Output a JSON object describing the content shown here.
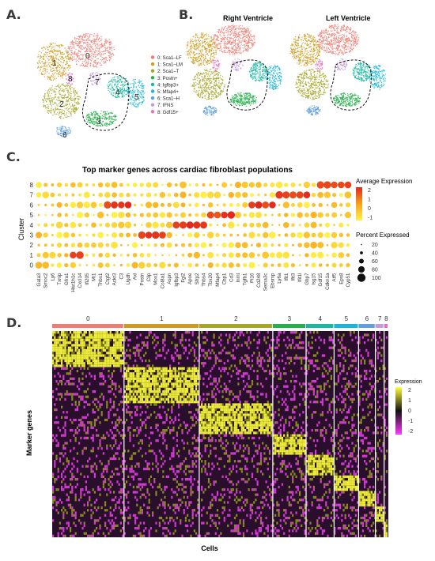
{
  "panel_labels": {
    "a": "A.",
    "b": "B.",
    "c": "C.",
    "d": "D."
  },
  "panel_a": {
    "cluster_labels": [
      "0",
      "1",
      "8",
      "7",
      "2",
      "4",
      "5",
      "3",
      "6"
    ],
    "legend": [
      {
        "label": "0: Sca1–LF",
        "color": "#ef7c72"
      },
      {
        "label": "1: Sca1–LM",
        "color": "#cf9b1f"
      },
      {
        "label": "2: Sca1–T",
        "color": "#a5a526"
      },
      {
        "label": "3: Postn+",
        "color": "#24b04a"
      },
      {
        "label": "4: Igfbp3+",
        "color": "#19b8a0"
      },
      {
        "label": "5: Mfap4+",
        "color": "#18b6d8"
      },
      {
        "label": "6: Sca1–H",
        "color": "#5f9fde"
      },
      {
        "label": "7: IFNS",
        "color": "#c59bd9"
      },
      {
        "label": "8: Gdf15+",
        "color": "#ea6fc0"
      }
    ]
  },
  "panel_b": {
    "right_title": "Right Ventricle",
    "left_title": "Left Ventricle"
  },
  "chart_data": [
    {
      "type": "scatter",
      "title": "Top marker genes across cardiac fibroblast populations",
      "xlabel": "",
      "ylabel": "Cluster",
      "clusters": [
        "8",
        "7",
        "6",
        "5",
        "4",
        "3",
        "2",
        "1",
        "0"
      ],
      "genes": [
        "Gata3",
        "Smoc2",
        "Ly6",
        "Txnip",
        "Gfra1",
        "Hist1h1c",
        "Cxcl14",
        "Ifi205",
        "Mt1",
        "Thbs1",
        "Ctgf2",
        "Ackr3",
        "C3",
        "Ugdh",
        "Axl",
        "Postn",
        "Cilp",
        "Mox1",
        "Col8a1",
        "Aspn",
        "Igfbp3",
        "Fgl2",
        "Apoe",
        "Sfrp2",
        "Thbs4",
        "Tbx20",
        "Mfap4",
        "Cbp1",
        "Cd3",
        "Inmt",
        "Tgfb1",
        "Pi16",
        "Cd248",
        "Sema3c",
        "Ebsmp",
        "Ly6a",
        "Ifit1",
        "Ifit3",
        "Ifit1l",
        "Gbp7",
        "Isg15",
        "Gdf15",
        "Cdkn1a",
        "Atf5",
        "Eps8",
        "Cyp51"
      ],
      "legend_titles": {
        "color": "Average Expression",
        "size": "Percent Expressed"
      },
      "color_scale": {
        "range": [
          -1,
          2.5
        ],
        "ticks": [
          2,
          1,
          0,
          -1
        ],
        "low_color": "#fff34a",
        "mid_color": "#f7a21b",
        "high_color": "#e2261c"
      },
      "size_scale": {
        "ticks": [
          20,
          40,
          60,
          80,
          100
        ]
      },
      "highlights": [
        {
          "cluster": "8",
          "genes": [
            "Gdf15",
            "Cdkn1a",
            "Atf5",
            "Eps8",
            "Cyp51"
          ]
        },
        {
          "cluster": "7",
          "genes": [
            "Ly6a",
            "Ifit1",
            "Ifit3",
            "Ifit1l",
            "Gbp7"
          ]
        },
        {
          "cluster": "6",
          "genes": [
            "Ctgf2",
            "Ackr3",
            "C3",
            "Ugdh",
            "Pi16",
            "Cd248",
            "Sema3c",
            "Ebsmp"
          ]
        },
        {
          "cluster": "5",
          "genes": [
            "Tbx20",
            "Mfap4",
            "Cbp1",
            "Cd3"
          ]
        },
        {
          "cluster": "4",
          "genes": [
            "Igfbp3",
            "Fgl2",
            "Apoe",
            "Sfrp2",
            "Thbs4"
          ]
        },
        {
          "cluster": "3",
          "genes": [
            "Postn",
            "Cilp",
            "Mox1",
            "Col8a1"
          ]
        },
        {
          "cluster": "1",
          "genes": [
            "Hist1h1c",
            "Cxcl14"
          ]
        }
      ]
    },
    {
      "type": "heatmap",
      "xlabel": "Cells",
      "ylabel": "Marker genes",
      "clusters": [
        {
          "name": "0",
          "color": "#ef7c72",
          "width": 0.205
        },
        {
          "name": "1",
          "color": "#cf9b1f",
          "width": 0.215
        },
        {
          "name": "2",
          "color": "#a5a526",
          "width": 0.21
        },
        {
          "name": "3",
          "color": "#24b04a",
          "width": 0.095
        },
        {
          "name": "4",
          "color": "#19b8a0",
          "width": 0.08
        },
        {
          "name": "5",
          "color": "#18b6d8",
          "width": 0.07
        },
        {
          "name": "6",
          "color": "#5f9fde",
          "width": 0.048
        },
        {
          "name": "7",
          "color": "#c59bd9",
          "width": 0.025
        },
        {
          "name": "8",
          "color": "#ea6fc0",
          "width": 0.012
        }
      ],
      "legend_title": "Expression",
      "scale_ticks": [
        2,
        1,
        0,
        -1,
        -2
      ],
      "scale_colors": [
        "#ffff3a",
        "#111111",
        "#ff3bff"
      ]
    }
  ]
}
